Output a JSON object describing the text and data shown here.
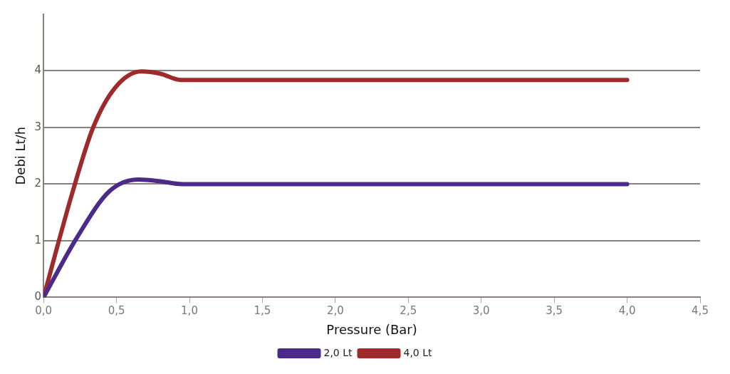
{
  "chart_data": {
    "type": "line",
    "xlabel": "Pressure (Bar)",
    "ylabel": "Debi Lt/h",
    "xlim": [
      0,
      4.5
    ],
    "xticks": [
      {
        "value": 0,
        "label": "0,0"
      },
      {
        "value": 0.5,
        "label": "0,5"
      },
      {
        "value": 1,
        "label": "1,0"
      },
      {
        "value": 1.5,
        "label": "1,5"
      },
      {
        "value": 2,
        "label": "2,0"
      },
      {
        "value": 2.5,
        "label": "2,5"
      },
      {
        "value": 3,
        "label": "3,0"
      },
      {
        "value": 3.5,
        "label": "3,5"
      },
      {
        "value": 4,
        "label": "4,0"
      },
      {
        "value": 4.5,
        "label": "4,5"
      }
    ],
    "ylim": [
      0,
      5
    ],
    "yticks": [
      0,
      1,
      2,
      3,
      4
    ],
    "grid": "y",
    "legend": "bottom",
    "marker": "none",
    "line_style": "solid",
    "series": [
      {
        "name": "2,0 Lt",
        "color": "#4b2a8a",
        "x": [
          0,
          0.23,
          0.45,
          0.65,
          0.8,
          0.95,
          2,
          3,
          4
        ],
        "values": [
          0,
          1.06,
          1.87,
          2.08,
          2.05,
          2.0,
          2.0,
          2.0,
          2.0
        ]
      },
      {
        "name": "4,0 Lt",
        "color": "#9e2a2b",
        "x": [
          0,
          0.2,
          0.34,
          0.49,
          0.67,
          0.8,
          0.94,
          2,
          3,
          4
        ],
        "values": [
          0,
          1.87,
          3.0,
          3.7,
          3.99,
          3.95,
          3.84,
          3.84,
          3.84,
          3.84
        ]
      }
    ]
  }
}
